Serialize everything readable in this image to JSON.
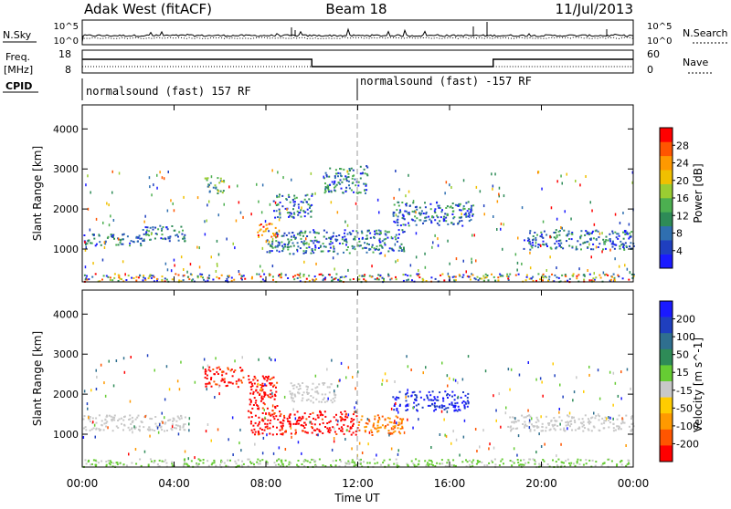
{
  "header": {
    "station": "Adak West (fitACF)",
    "beam": "Beam 18",
    "date": "11/Jul/2013"
  },
  "sky_panel": {
    "left_label": "N.Sky",
    "right_label": "N.Search",
    "left_ticks": [
      "10^5",
      "10^0"
    ],
    "right_ticks": [
      "10^5",
      "10^0"
    ]
  },
  "freq_panel": {
    "left_label_line1": "Freq.",
    "left_label_line2": "[MHz]",
    "left_ticks": [
      "18",
      "8"
    ],
    "right_label": "Nave",
    "right_ticks": [
      "60",
      "0"
    ]
  },
  "cpid": {
    "label": "CPID",
    "segments": [
      {
        "start_hour": 0,
        "text": "normalsound (fast) 157 RF"
      },
      {
        "start_hour": 12,
        "text": "normalsound (fast) -157 RF"
      }
    ]
  },
  "chart_data": [
    {
      "type": "heatmap",
      "name": "power",
      "ylabel": "Slant Range [km]",
      "xlim": [
        0,
        24
      ],
      "ylim": [
        180,
        4600
      ],
      "yticks": [
        "1000",
        "2000",
        "3000",
        "4000"
      ],
      "colorbar": {
        "label": "Power [dB]",
        "ticks": [
          "4",
          "8",
          "12",
          "16",
          "20",
          "24",
          "28"
        ],
        "colors": [
          "#1a1aff",
          "#1f3fbf",
          "#2f6fb0",
          "#2e8b57",
          "#4caf50",
          "#9acd32",
          "#f0c000",
          "#ff9900",
          "#ff5500",
          "#ff0000"
        ]
      },
      "regions": [
        {
          "hours": [
            0,
            2.6
          ],
          "range_km": [
            1100,
            1400
          ],
          "level": "low"
        },
        {
          "hours": [
            2.6,
            4.5
          ],
          "range_km": [
            1200,
            1600
          ],
          "level": "low"
        },
        {
          "hours": [
            5.3,
            6.2
          ],
          "range_km": [
            2400,
            2800
          ],
          "level": "mid"
        },
        {
          "hours": [
            7.6,
            8.4
          ],
          "range_km": [
            1300,
            1700
          ],
          "level": "high"
        },
        {
          "hours": [
            8.0,
            14.0
          ],
          "range_km": [
            900,
            1500
          ],
          "level": "low"
        },
        {
          "hours": [
            8.3,
            10.0
          ],
          "range_km": [
            1800,
            2400
          ],
          "level": "low"
        },
        {
          "hours": [
            10.5,
            12.4
          ],
          "range_km": [
            2400,
            3100
          ],
          "level": "low"
        },
        {
          "hours": [
            13.5,
            17.0
          ],
          "range_km": [
            1600,
            2200
          ],
          "level": "low"
        },
        {
          "hours": [
            19.2,
            24.0
          ],
          "range_km": [
            1000,
            1500
          ],
          "level": "low"
        },
        {
          "hours": [
            0,
            24
          ],
          "range_km": [
            200,
            400
          ],
          "level": "mixed"
        }
      ]
    },
    {
      "type": "heatmap",
      "name": "velocity",
      "xlabel": "Time UT",
      "ylabel": "Slant Range [km]",
      "xlim": [
        0,
        24
      ],
      "ylim": [
        180,
        4600
      ],
      "xticks": [
        "00:00",
        "04:00",
        "08:00",
        "12:00",
        "16:00",
        "20:00",
        "00:00"
      ],
      "yticks": [
        "1000",
        "2000",
        "3000",
        "4000"
      ],
      "colorbar": {
        "label": "Velocity [m s^-1]",
        "ticks": [
          "200",
          "100",
          "50",
          "15",
          "-15",
          "-50",
          "-100",
          "-200"
        ],
        "colors": [
          "#1a1aff",
          "#1f3fbf",
          "#2f6f8f",
          "#2e8b57",
          "#66cc33",
          "#c8c8c8",
          "#ffcc00",
          "#ff9900",
          "#ff5500",
          "#ff0000"
        ]
      },
      "regions": [
        {
          "hours": [
            0,
            4.5
          ],
          "range_km": [
            1100,
            1500
          ],
          "level": "gray"
        },
        {
          "hours": [
            5.3,
            7.0
          ],
          "range_km": [
            2200,
            2700
          ],
          "level": "red"
        },
        {
          "hours": [
            7.2,
            8.5
          ],
          "range_km": [
            1000,
            2500
          ],
          "level": "red"
        },
        {
          "hours": [
            8.5,
            12.0
          ],
          "range_km": [
            1000,
            1600
          ],
          "level": "red"
        },
        {
          "hours": [
            12.0,
            14.0
          ],
          "range_km": [
            1000,
            1500
          ],
          "level": "orange"
        },
        {
          "hours": [
            13.5,
            16.8
          ],
          "range_km": [
            1600,
            2100
          ],
          "level": "blue"
        },
        {
          "hours": [
            9.0,
            11.0
          ],
          "range_km": [
            1800,
            2300
          ],
          "level": "gray"
        },
        {
          "hours": [
            18.5,
            24.0
          ],
          "range_km": [
            1100,
            1500
          ],
          "level": "gray"
        },
        {
          "hours": [
            0,
            24
          ],
          "range_km": [
            200,
            400
          ],
          "level": "ground"
        }
      ]
    }
  ]
}
